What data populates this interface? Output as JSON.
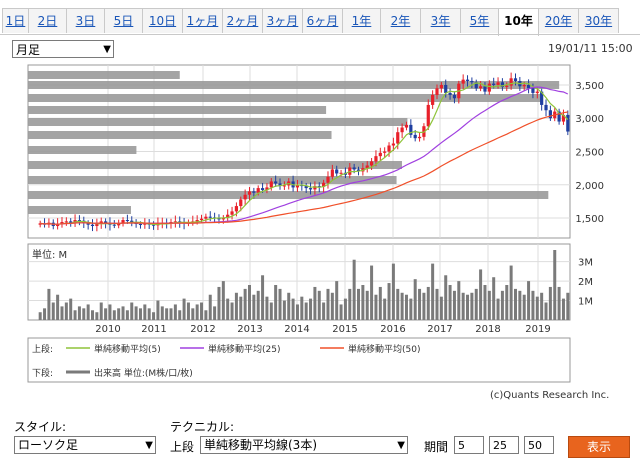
{
  "tabs": [
    {
      "label": "1日"
    },
    {
      "label": "2日"
    },
    {
      "label": "3日"
    },
    {
      "label": "5日"
    },
    {
      "label": "10日"
    },
    {
      "label": "1ヶ月"
    },
    {
      "label": "2ヶ月"
    },
    {
      "label": "3ヶ月"
    },
    {
      "label": "6ヶ月"
    },
    {
      "label": "1年"
    },
    {
      "label": "2年"
    },
    {
      "label": "3年"
    },
    {
      "label": "5年"
    },
    {
      "label": "10年"
    },
    {
      "label": "20年"
    },
    {
      "label": "30年"
    }
  ],
  "active_tab": "10年",
  "period_select": "月足",
  "timestamp": "19/01/11 15:00",
  "copyright": "(c)Quants Research Inc.",
  "volume_unit": "単位: M",
  "legend": {
    "upper_label": "上段:",
    "lower_label": "下段:",
    "ma5": "単純移動平均(5)",
    "ma25": "単純移動平均(25)",
    "ma50": "単純移動平均(50)",
    "volume": "出来高 単位:(M株/口/枚)"
  },
  "controls": {
    "style_label": "スタイル:",
    "style_value": "ローソク足",
    "technical_label": "テクニカル:",
    "upper_label": "上段",
    "technical_value": "単純移動平均線(3本)",
    "period_label": "期間",
    "periods": [
      "5",
      "25",
      "50"
    ],
    "show_button": "表示"
  },
  "colors": {
    "ma5": "#8fc43a",
    "ma25": "#a040e0",
    "ma50": "#f0502a",
    "up": "#e8202a",
    "down": "#1f3fa0",
    "volume": "#7a7a7a",
    "overlay": "#9a9a9a"
  },
  "chart_data": {
    "type": "candlestick",
    "x_tick_labels": [
      "2010",
      "2011",
      "2012",
      "2013",
      "2014",
      "2015",
      "2016",
      "2017",
      "2018",
      "2019"
    ],
    "price_ticks": [
      "1,500",
      "2,000",
      "2,500",
      "3,000",
      "3,500"
    ],
    "price_range": [
      1200,
      3800
    ],
    "volume_ticks": [
      "1M",
      "2M",
      "3M"
    ],
    "volume_range": [
      0,
      3.6
    ],
    "price_close": [
      1420,
      1400,
      1430,
      1380,
      1410,
      1440,
      1450,
      1430,
      1470,
      1460,
      1420,
      1400,
      1380,
      1420,
      1450,
      1430,
      1400,
      1390,
      1420,
      1470,
      1460,
      1430,
      1410,
      1400,
      1420,
      1400,
      1390,
      1420,
      1430,
      1420,
      1440,
      1450,
      1440,
      1420,
      1430,
      1450,
      1470,
      1490,
      1520,
      1510,
      1500,
      1480,
      1500,
      1550,
      1600,
      1680,
      1780,
      1850,
      1900,
      1880,
      1950,
      1920,
      1960,
      2050,
      2020,
      1980,
      1990,
      2050,
      1960,
      2000,
      1980,
      1950,
      1930,
      1980,
      1970,
      2030,
      2120,
      2230,
      2170,
      2180,
      2150,
      2260,
      2230,
      2200,
      2250,
      2290,
      2350,
      2430,
      2480,
      2500,
      2590,
      2620,
      2790,
      2860,
      2900,
      2750,
      2700,
      2720,
      2880,
      3200,
      3350,
      3450,
      3500,
      3380,
      3350,
      3300,
      3520,
      3580,
      3560,
      3540,
      3450,
      3480,
      3400,
      3520,
      3500,
      3540,
      3470,
      3490,
      3600,
      3560,
      3480,
      3500,
      3450,
      3380,
      3400,
      3200,
      3120,
      3000,
      3100,
      2950,
      3050,
      2800
    ],
    "volume": [
      0.4,
      0.6,
      1.6,
      0.9,
      1.3,
      0.7,
      0.9,
      1.1,
      0.5,
      0.7,
      0.6,
      0.8,
      0.5,
      0.4,
      0.9,
      0.6,
      0.8,
      0.5,
      0.6,
      0.7,
      0.5,
      0.9,
      0.7,
      0.6,
      0.8,
      0.6,
      0.4,
      1.0,
      0.7,
      0.6,
      0.6,
      0.8,
      0.5,
      1.1,
      0.9,
      0.6,
      0.8,
      0.9,
      0.5,
      1.3,
      0.7,
      1.7,
      2.0,
      1.1,
      0.9,
      1.4,
      1.2,
      1.6,
      1.8,
      1.3,
      1.5,
      2.3,
      1.2,
      0.9,
      1.8,
      1.6,
      1.0,
      1.4,
      1.1,
      0.8,
      1.2,
      0.9,
      1.1,
      1.7,
      1.5,
      0.9,
      1.6,
      1.4,
      2.0,
      0.8,
      1.1,
      1.6,
      3.1,
      1.6,
      1.8,
      1.5,
      2.8,
      1.3,
      1.7,
      1.1,
      1.9,
      2.9,
      1.6,
      1.4,
      1.3,
      1.1,
      2.1,
      1.6,
      1.4,
      1.7,
      2.9,
      1.6,
      1.2,
      2.3,
      1.8,
      1.5,
      2.0,
      1.4,
      1.3,
      1.4,
      1.6,
      2.6,
      1.8,
      1.5,
      2.2,
      1.1,
      1.5,
      1.8,
      2.8,
      1.6,
      1.5,
      1.3,
      2.0,
      1.5,
      1.2,
      1.4,
      0.9,
      1.7,
      3.6,
      1.7,
      1.1,
      1.4
    ]
  }
}
